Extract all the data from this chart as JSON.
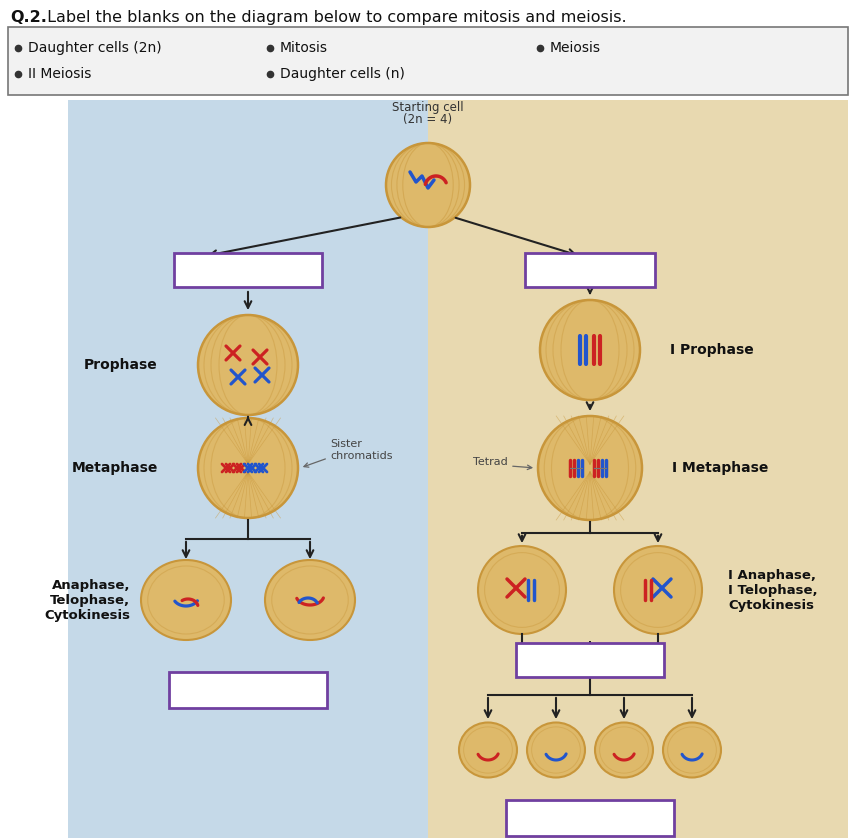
{
  "title_bold": "Q.2.",
  "title_rest": " Label the blanks on the diagram below to compare mitosis and meiosis.",
  "bg_left": "#c5d9e8",
  "bg_right": "#e8d9b0",
  "bg_white": "#ffffff",
  "cell_fill": "#deb96a",
  "cell_fill2": "#e8c87a",
  "cell_edge": "#c8963a",
  "box_edge": "#7040a0",
  "arrow_color": "#222222",
  "label_color": "#111111",
  "starting_cell_label": "Starting cell\n(2n = 4)",
  "left_labels": {
    "prophase": "Prophase",
    "metaphase": "Metaphase",
    "anaphase": "Anaphase,\nTelophase,\nCytokinesis"
  },
  "right_labels": {
    "prophase": "I Prophase",
    "metaphase": "I Metaphase",
    "anaphase": "I Anaphase,\nI Telophase,\nCytokinesis",
    "tetrad": "Tetrad",
    "sister": "Sister\nchromatids"
  },
  "fig_w": 8.56,
  "fig_h": 8.38,
  "dpi": 100
}
